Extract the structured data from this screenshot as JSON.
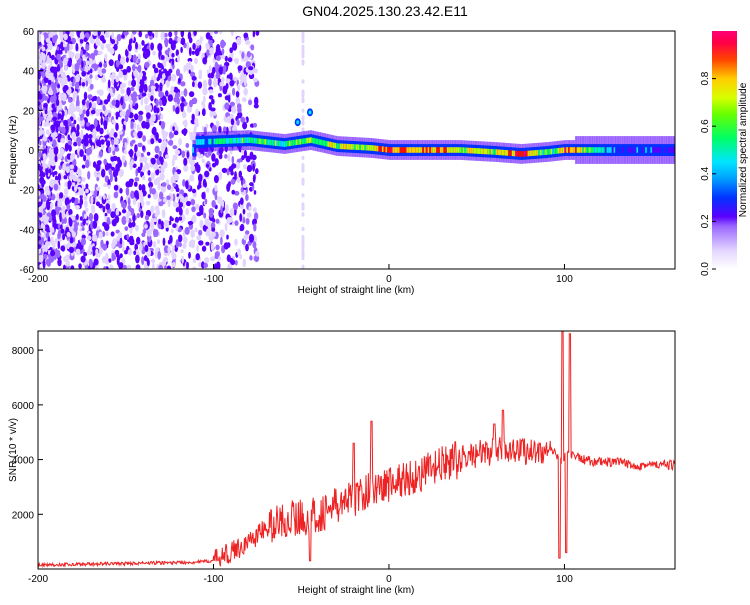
{
  "title": "GN04.2025.130.23.42.E11",
  "colors": {
    "snr_line": "#ee2222",
    "colormap": [
      "#e2d4ff",
      "#9a66ff",
      "#5a00ff",
      "#0033ff",
      "#00e5ff",
      "#00ff66",
      "#b5ff00",
      "#ffcc00",
      "#ff1100",
      "#ff0077"
    ]
  },
  "chart_data": [
    {
      "type": "heatmap",
      "title": "GN04.2025.130.23.42.E11",
      "xlabel": "Height of straight line (km)",
      "ylabel": "Frequency (Hz)",
      "xlim": [
        -200,
        163
      ],
      "ylim": [
        -60,
        60
      ],
      "xticks": [
        -200,
        -100,
        0,
        100
      ],
      "yticks": [
        -60,
        -40,
        -20,
        0,
        20,
        40,
        60
      ],
      "colorbar": {
        "label": "Normalized spectral amplitude",
        "range": [
          0,
          1
        ],
        "ticks": [
          0.0,
          0.2,
          0.4,
          0.6,
          0.8
        ]
      },
      "ridge": [
        {
          "x": -110,
          "f": 4,
          "amp": 0.45
        },
        {
          "x": -80,
          "f": 5,
          "amp": 0.5
        },
        {
          "x": -60,
          "f": 3,
          "amp": 0.55
        },
        {
          "x": -45,
          "f": 5,
          "amp": 0.6
        },
        {
          "x": -30,
          "f": 2,
          "amp": 0.65
        },
        {
          "x": -10,
          "f": 1,
          "amp": 0.7
        },
        {
          "x": 0,
          "f": 0,
          "amp": 0.85
        },
        {
          "x": 20,
          "f": 0,
          "amp": 0.8
        },
        {
          "x": 40,
          "f": 0,
          "amp": 0.7
        },
        {
          "x": 60,
          "f": -1,
          "amp": 0.65
        },
        {
          "x": 75,
          "f": -2,
          "amp": 0.9
        },
        {
          "x": 90,
          "f": -1,
          "amp": 0.5
        },
        {
          "x": 100,
          "f": 0,
          "amp": 0.85
        },
        {
          "x": 130,
          "f": 0,
          "amp": 0.3
        },
        {
          "x": 163,
          "f": 0,
          "amp": 0.3
        }
      ]
    },
    {
      "type": "line",
      "xlabel": "Height of straight line (km)",
      "ylabel": "SNR (10 * v/v)",
      "xlim": [
        -200,
        163
      ],
      "ylim": [
        0,
        8700
      ],
      "xticks": [
        -200,
        -100,
        0,
        100
      ],
      "yticks": [
        2000,
        4000,
        6000,
        8000
      ],
      "series": [
        {
          "x": [
            -200,
            -150,
            -110,
            -100,
            -90,
            -80,
            -70,
            -60,
            -50,
            -40,
            -30,
            -20,
            -10,
            0,
            10,
            20,
            30,
            40,
            50,
            60,
            70,
            80,
            90,
            95,
            98,
            100,
            102,
            105,
            110,
            120,
            130,
            140,
            150,
            163
          ],
          "y": [
            150,
            200,
            250,
            300,
            600,
            1000,
            1500,
            1800,
            1900,
            2000,
            2300,
            2600,
            2900,
            3100,
            3300,
            3500,
            3800,
            4000,
            4200,
            4300,
            4400,
            4300,
            4300,
            4200,
            4000,
            4100,
            4300,
            4200,
            4000,
            3900,
            3900,
            3800,
            3800,
            3800
          ],
          "spikes": [
            {
              "x": -45,
              "y": 300
            },
            {
              "x": -20,
              "y": 4600
            },
            {
              "x": -10,
              "y": 5400
            },
            {
              "x": 60,
              "y": 5300
            },
            {
              "x": 65,
              "y": 5800
            },
            {
              "x": 97,
              "y": 400
            },
            {
              "x": 99,
              "y": 8700
            },
            {
              "x": 101,
              "y": 600
            },
            {
              "x": 103,
              "y": 8600
            }
          ]
        }
      ]
    }
  ]
}
